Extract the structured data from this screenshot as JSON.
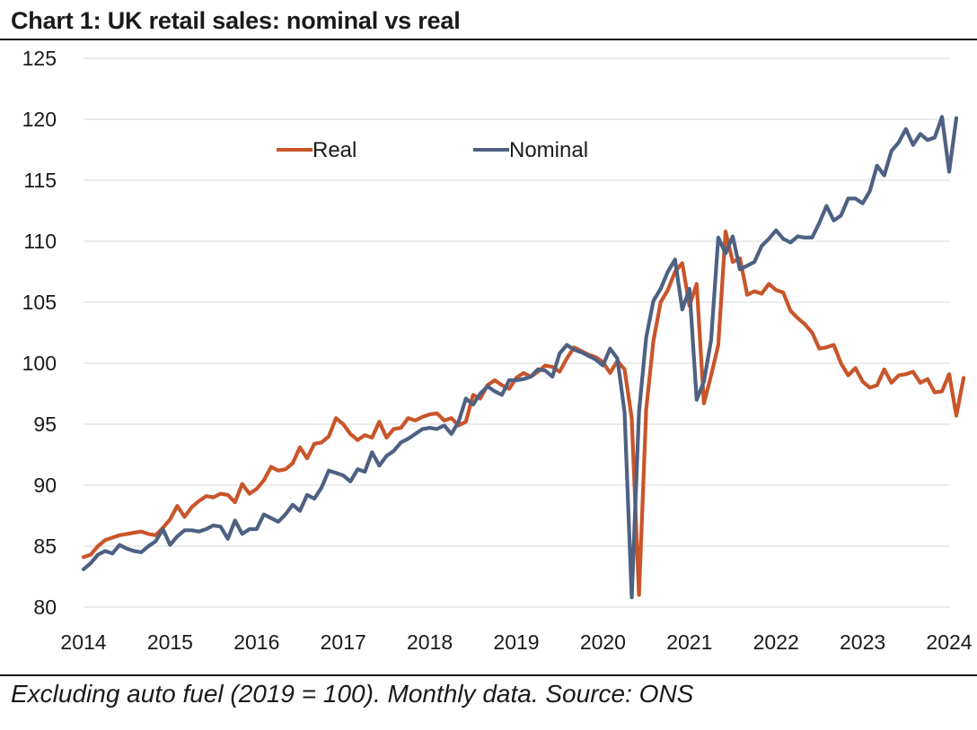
{
  "title": "Chart 1: UK retail sales: nominal vs real",
  "footer": "Excluding auto fuel (2019 = 100). Monthly data. Source: ONS",
  "chart_data": {
    "type": "line",
    "title": "Chart 1: UK retail sales: nominal vs real",
    "xlabel": "",
    "ylabel": "",
    "ylim": [
      80,
      125
    ],
    "yticks": [
      80,
      85,
      90,
      95,
      100,
      105,
      110,
      115,
      120,
      125
    ],
    "xticks": [
      "2014",
      "2015",
      "2016",
      "2017",
      "2018",
      "2019",
      "2020",
      "2021",
      "2022",
      "2023",
      "2024"
    ],
    "grid": true,
    "legend_position": "top-center",
    "series": [
      {
        "name": "Real",
        "color": "#c9552a",
        "start": "2014-01",
        "values": [
          84.1,
          84.3,
          85.0,
          85.5,
          85.7,
          85.9,
          86.0,
          86.1,
          86.2,
          86.0,
          85.9,
          86.5,
          87.2,
          88.3,
          87.4,
          88.2,
          88.7,
          89.1,
          89.0,
          89.3,
          89.2,
          88.6,
          90.1,
          89.3,
          89.7,
          90.4,
          91.5,
          91.2,
          91.3,
          91.8,
          93.1,
          92.2,
          93.4,
          93.5,
          94.0,
          95.5,
          95.0,
          94.2,
          93.7,
          94.1,
          93.9,
          95.2,
          93.9,
          94.6,
          94.7,
          95.5,
          95.3,
          95.6,
          95.8,
          95.9,
          95.3,
          95.5,
          94.9,
          95.2,
          97.4,
          97.1,
          98.2,
          98.6,
          98.2,
          97.9,
          98.8,
          99.2,
          98.9,
          99.3,
          99.8,
          99.7,
          99.3,
          100.4,
          101.3,
          101.0,
          100.7,
          100.5,
          100.1,
          99.2,
          100.2,
          99.5,
          95.5,
          81.0,
          96.2,
          101.8,
          105.0,
          106.0,
          107.5,
          108.2,
          104.7,
          106.5,
          96.7,
          99.0,
          101.5,
          110.8,
          108.3,
          108.6,
          105.6,
          105.9,
          105.7,
          106.5,
          106.0,
          105.8,
          104.3,
          103.7,
          103.2,
          102.5,
          101.2,
          101.3,
          101.5,
          100.0,
          99.0,
          99.6,
          98.5,
          98.0,
          98.2,
          99.5,
          98.4,
          99.0,
          99.1,
          99.3,
          98.4,
          98.7,
          97.6,
          97.7,
          99.1,
          95.7,
          98.8
        ]
      },
      {
        "name": "Nominal",
        "color": "#4e6183",
        "start": "2014-01",
        "values": [
          83.1,
          83.6,
          84.3,
          84.6,
          84.4,
          85.1,
          84.8,
          84.6,
          84.5,
          85.0,
          85.4,
          86.4,
          85.1,
          85.8,
          86.3,
          86.3,
          86.2,
          86.4,
          86.7,
          86.6,
          85.6,
          87.1,
          86.0,
          86.4,
          86.4,
          87.6,
          87.3,
          87.0,
          87.6,
          88.4,
          87.9,
          89.2,
          88.9,
          89.8,
          91.2,
          91.0,
          90.8,
          90.3,
          91.3,
          91.1,
          92.7,
          91.6,
          92.4,
          92.8,
          93.5,
          93.8,
          94.2,
          94.6,
          94.7,
          94.6,
          94.9,
          94.2,
          95.2,
          97.1,
          96.6,
          97.5,
          98.1,
          97.7,
          97.4,
          98.6,
          98.6,
          98.7,
          98.9,
          99.5,
          99.4,
          98.9,
          100.8,
          101.5,
          101.1,
          100.9,
          100.6,
          100.3,
          99.8,
          101.2,
          100.4,
          96.0,
          80.8,
          96.0,
          102.1,
          105.1,
          106.1,
          107.5,
          108.5,
          104.4,
          106.1,
          97.0,
          98.5,
          101.9,
          110.3,
          109.0,
          110.4,
          107.7,
          108.0,
          108.3,
          109.6,
          110.2,
          110.9,
          110.2,
          109.9,
          110.4,
          110.3,
          110.3,
          111.5,
          112.9,
          111.7,
          112.1,
          113.5,
          113.5,
          113.1,
          114.1,
          116.2,
          115.4,
          117.4,
          118.1,
          119.2,
          117.9,
          118.8,
          118.3,
          118.5,
          120.2,
          115.7,
          120.1
        ]
      }
    ]
  }
}
